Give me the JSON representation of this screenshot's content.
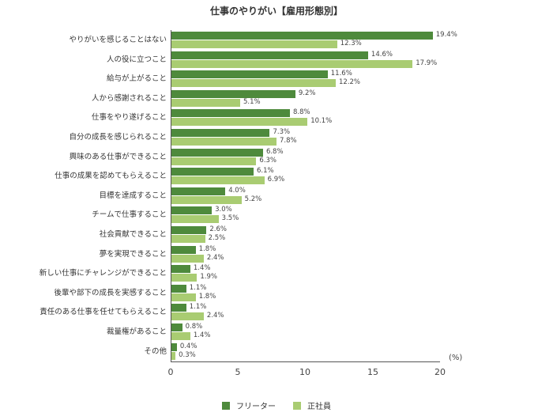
{
  "chart_data": {
    "type": "bar",
    "orientation": "horizontal",
    "title": "仕事のやりがい【雇用形態別】",
    "xlabel": "",
    "ylabel": "",
    "unit_label": "(%)",
    "xlim": [
      0,
      20
    ],
    "x_ticks": [
      "0",
      "5",
      "10",
      "15",
      "20"
    ],
    "grid": false,
    "legend_position": "bottom",
    "categories": [
      "やりがいを感じることはない",
      "人の役に立つこと",
      "給与が上がること",
      "人から感謝されること",
      "仕事をやり遂げること",
      "自分の成長を感じられること",
      "興味のある仕事ができること",
      "仕事の成果を認めてもらえること",
      "目標を達成すること",
      "チームで仕事すること",
      "社会貢献できること",
      "夢を実現できること",
      "新しい仕事にチャレンジができること",
      "後輩や部下の成長を実感すること",
      "責任のある仕事を任せてもらえること",
      "裁量権があること",
      "その他"
    ],
    "series": [
      {
        "name": "フリーター",
        "color": "#4e8a3c",
        "values": [
          19.4,
          14.6,
          11.6,
          9.2,
          8.8,
          7.3,
          6.8,
          6.1,
          4.0,
          3.0,
          2.6,
          1.8,
          1.4,
          1.1,
          1.1,
          0.8,
          0.4
        ],
        "labels": [
          "19.4%",
          "14.6%",
          "11.6%",
          "9.2%",
          "8.8%",
          "7.3%",
          "6.8%",
          "6.1%",
          "4.0%",
          "3.0%",
          "2.6%",
          "1.8%",
          "1.4%",
          "1.1%",
          "1.1%",
          "0.8%",
          "0.4%"
        ]
      },
      {
        "name": "正社員",
        "color": "#a9cc72",
        "values": [
          12.3,
          17.9,
          12.2,
          5.1,
          10.1,
          7.8,
          6.3,
          6.9,
          5.2,
          3.5,
          2.5,
          2.4,
          1.9,
          1.8,
          2.4,
          1.4,
          0.3
        ],
        "labels": [
          "12.3%",
          "17.9%",
          "12.2%",
          "5.1%",
          "10.1%",
          "7.8%",
          "6.3%",
          "6.9%",
          "5.2%",
          "3.5%",
          "2.5%",
          "2.4%",
          "1.9%",
          "1.8%",
          "2.4%",
          "1.4%",
          "0.3%"
        ]
      }
    ]
  }
}
